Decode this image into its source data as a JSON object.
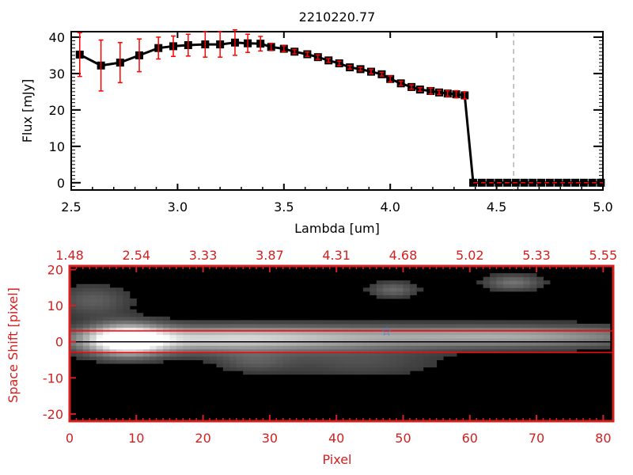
{
  "chart_data": [
    {
      "type": "line",
      "title": "2210220.77",
      "xlabel": "Lambda [um]",
      "ylabel": "Flux [mJy]",
      "xlim": [
        2.5,
        5.0
      ],
      "ylim": [
        -2,
        41.5
      ],
      "xticks": [
        "2.5",
        "3.0",
        "3.5",
        "4.0",
        "4.5",
        "5.0"
      ],
      "xtick_values": [
        2.5,
        3.0,
        3.5,
        4.0,
        4.5,
        5.0
      ],
      "yticks": [
        "0",
        "10",
        "20",
        "30",
        "40"
      ],
      "ytick_values": [
        0,
        10,
        20,
        30,
        40
      ],
      "marker_line_at": 4.58,
      "series": [
        {
          "name": "flux",
          "x": [
            2.54,
            2.64,
            2.73,
            2.82,
            2.91,
            2.98,
            3.05,
            3.13,
            3.2,
            3.27,
            3.33,
            3.39,
            3.44,
            3.5,
            3.55,
            3.61,
            3.66,
            3.71,
            3.76,
            3.81,
            3.86,
            3.91,
            3.96,
            4.0,
            4.05,
            4.1,
            4.14,
            4.19,
            4.23,
            4.27,
            4.31,
            4.35,
            4.39,
            4.43,
            4.47,
            4.51,
            4.55,
            4.59,
            4.63,
            4.67,
            4.71,
            4.75,
            4.79,
            4.83,
            4.87,
            4.91,
            4.95,
            4.99
          ],
          "y": [
            35.2,
            32.2,
            33.0,
            35.0,
            37.0,
            37.5,
            37.8,
            38.0,
            38.0,
            38.5,
            38.3,
            38.2,
            37.3,
            36.8,
            36.0,
            35.3,
            34.5,
            33.6,
            32.8,
            31.7,
            31.2,
            30.5,
            29.8,
            28.5,
            27.3,
            26.3,
            25.6,
            25.2,
            24.8,
            24.5,
            24.3,
            24.0,
            0,
            0,
            0,
            0,
            0,
            0,
            0,
            0,
            0,
            0,
            0,
            0,
            0,
            0,
            0,
            0
          ],
          "err": [
            6,
            7,
            5.5,
            4.5,
            3,
            2.8,
            3,
            3.5,
            3.5,
            3.5,
            2.5,
            2,
            1,
            0.8,
            0.6,
            0.6,
            0.6,
            0.5,
            0.6,
            0.5,
            0.5,
            0.6,
            0.5,
            0.8,
            0.6,
            0.6,
            0.5,
            0.8,
            0.6,
            0.8,
            1,
            1,
            0,
            0,
            0,
            0,
            0,
            0,
            0,
            0,
            0,
            0,
            0,
            0,
            0,
            0,
            0,
            0
          ]
        }
      ]
    },
    {
      "type": "heatmap",
      "xlabel": "Pixel",
      "ylabel": "Space Shift [pixel]",
      "xlim": [
        0,
        81.5
      ],
      "ylim": [
        -22,
        21
      ],
      "xticks": [
        "0",
        "10",
        "20",
        "30",
        "40",
        "50",
        "60",
        "70",
        "80"
      ],
      "xtick_values": [
        0,
        10,
        20,
        30,
        40,
        50,
        60,
        70,
        80
      ],
      "top_xticks": [
        "1.48",
        "2.54",
        "3.33",
        "3.87",
        "4.31",
        "4.68",
        "5.02",
        "5.33",
        "5.55"
      ],
      "yticks": [
        "-20",
        "-10",
        "0",
        "10",
        "20"
      ],
      "ytick_values": [
        -20,
        -10,
        0,
        10,
        20
      ],
      "aperture_lines": [
        3,
        -3
      ],
      "center_line": 0,
      "star_marker": {
        "x": 47.5,
        "y": 3
      }
    }
  ],
  "colors": {
    "axis_red": "#d42020",
    "error_red": "#ff0000",
    "dashed_line": "#4a90d9",
    "star": "#3a7fe0"
  }
}
